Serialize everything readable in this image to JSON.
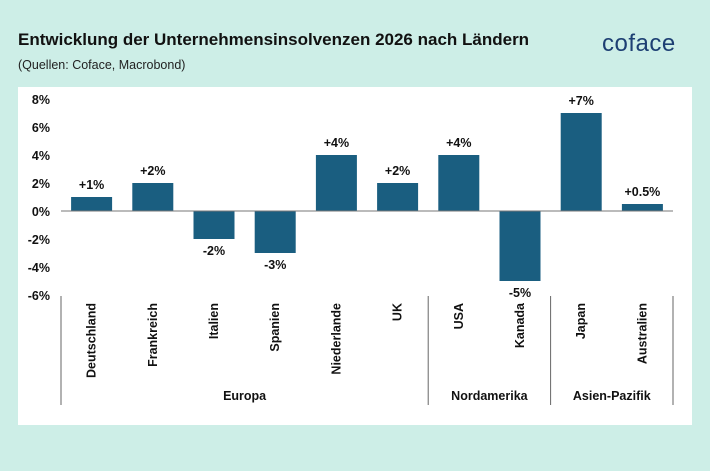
{
  "header": {
    "title": "Entwicklung der Unternehmensinsolvenzen 2026 nach Ländern",
    "subtitle": "(Quellen: Coface, Macrobond)",
    "logo": "coface"
  },
  "colors": {
    "background": "#cdeee7",
    "bar": "#1a5e80",
    "logo": "#1d3f73"
  },
  "chart_data": {
    "type": "bar",
    "title": "Entwicklung der Unternehmensinsolvenzen 2026 nach Ländern",
    "categories": [
      "Deutschland",
      "Frankreich",
      "Italien",
      "Spanien",
      "Niederlande",
      "UK",
      "USA",
      "Kanada",
      "Japan",
      "Australien"
    ],
    "values": [
      1,
      2,
      -2,
      -3,
      4,
      2,
      4,
      -5,
      7,
      0.5
    ],
    "data_labels": [
      "+1%",
      "+2%",
      "-2%",
      "-3%",
      "+4%",
      "+2%",
      "+4%",
      "-5%",
      "+7%",
      "+0.5%"
    ],
    "groups": [
      {
        "name": "Europa",
        "count": 6
      },
      {
        "name": "Nordamerika",
        "count": 2
      },
      {
        "name": "Asien-Pazifik",
        "count": 2
      }
    ],
    "ylim": [
      -6,
      8
    ],
    "yticks": [
      8,
      6,
      4,
      2,
      0,
      -2,
      -4,
      -6
    ],
    "ytick_labels": [
      "8%",
      "6%",
      "4%",
      "2%",
      "0%",
      "-2%",
      "-4%",
      "-6%"
    ],
    "grid": false,
    "legend": "none"
  }
}
